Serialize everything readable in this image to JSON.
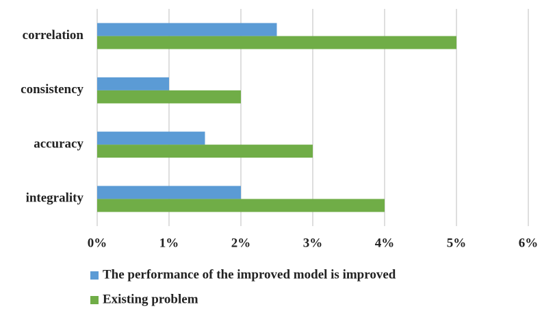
{
  "chart_data": {
    "type": "bar",
    "orientation": "horizontal",
    "categories": [
      "correlation",
      "consistency",
      "accuracy",
      "integrality"
    ],
    "series": [
      {
        "name": "The performance of the improved model is improved",
        "color": "#5b9bd5",
        "values": [
          2.5,
          1,
          1.5,
          2
        ]
      },
      {
        "name": "Existing problem",
        "color": "#70ad47",
        "values": [
          5,
          2,
          3,
          4
        ]
      }
    ],
    "xlim": [
      0,
      6
    ],
    "xticks": [
      {
        "value": 0,
        "label": "0%"
      },
      {
        "value": 1,
        "label": "1%"
      },
      {
        "value": 2,
        "label": "2%"
      },
      {
        "value": 3,
        "label": "3%"
      },
      {
        "value": 4,
        "label": "4%"
      },
      {
        "value": 5,
        "label": "5%"
      },
      {
        "value": 6,
        "label": "6%"
      }
    ],
    "grid": true,
    "legend": "bottom"
  }
}
